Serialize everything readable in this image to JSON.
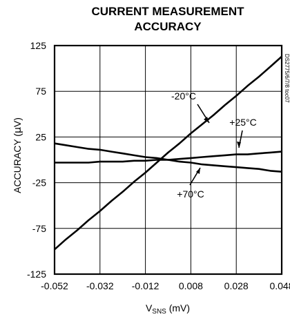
{
  "chart_data": {
    "type": "line",
    "title_line1": "CURRENT MEASUREMENT",
    "title_line2": "ACCURACY",
    "xlabel_main": "V",
    "xlabel_sub": "SNS",
    "xlabel_unit": " (mV)",
    "ylabel_pre": "ACCURACY (",
    "ylabel_mu": "µ",
    "ylabel_post": "V)",
    "xlim": [
      -0.052,
      0.048
    ],
    "ylim": [
      -125,
      125
    ],
    "x_ticks": [
      -0.052,
      -0.032,
      -0.012,
      0.008,
      0.028,
      0.048
    ],
    "x_tick_labels": [
      "-0.052",
      "-0.032",
      "-0.012",
      "0.008",
      "0.028",
      "0.048"
    ],
    "y_ticks": [
      -125,
      -75,
      -25,
      25,
      75,
      125
    ],
    "y_tick_labels": [
      "-125",
      "-75",
      "-25",
      "25",
      "75",
      "125"
    ],
    "grid": true,
    "figure_code": "DS2775/6/7/8 toc07",
    "series": [
      {
        "name": "-20°C",
        "annotation": "-20°C",
        "x": [
          -0.052,
          -0.047,
          -0.042,
          -0.037,
          -0.032,
          -0.027,
          -0.022,
          -0.017,
          -0.012,
          -0.007,
          -0.002,
          0.003,
          0.008,
          0.013,
          0.018,
          0.023,
          0.028,
          0.033,
          0.038,
          0.043,
          0.048
        ],
        "y": [
          -98,
          -87,
          -77,
          -66,
          -56,
          -45,
          -35,
          -24,
          -14,
          -3,
          8,
          18,
          29,
          39,
          49,
          60,
          70,
          81,
          91,
          102,
          113
        ]
      },
      {
        "name": "+25°C",
        "annotation": "+25°C",
        "x": [
          -0.052,
          -0.047,
          -0.042,
          -0.037,
          -0.032,
          -0.027,
          -0.022,
          -0.017,
          -0.012,
          -0.007,
          -0.002,
          0.003,
          0.008,
          0.013,
          0.018,
          0.023,
          0.028,
          0.033,
          0.038,
          0.043,
          0.048
        ],
        "y": [
          -3,
          -3,
          -3,
          -3,
          -2,
          -2,
          -2,
          -1,
          -1,
          0,
          0,
          1,
          2,
          3,
          4,
          5,
          6,
          6,
          7,
          8,
          9
        ]
      },
      {
        "name": "+70°C",
        "annotation": "+70°C",
        "x": [
          -0.052,
          -0.047,
          -0.042,
          -0.037,
          -0.032,
          -0.027,
          -0.022,
          -0.017,
          -0.012,
          -0.007,
          -0.002,
          0.003,
          0.008,
          0.013,
          0.018,
          0.023,
          0.028,
          0.033,
          0.038,
          0.043,
          0.048
        ],
        "y": [
          18,
          16,
          14,
          12,
          11,
          9,
          7,
          5,
          3,
          2,
          0,
          -2,
          -3,
          -5,
          -6,
          -7,
          -8,
          -9,
          -10,
          -12,
          -13
        ]
      }
    ]
  }
}
